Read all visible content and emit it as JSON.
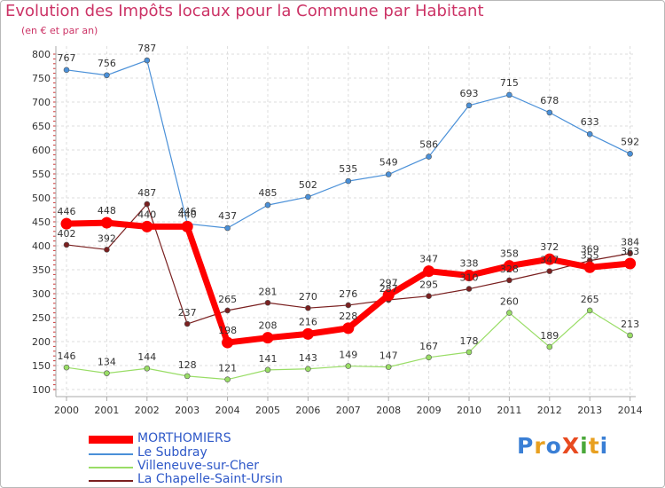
{
  "title": "Evolution des Impôts locaux pour la Commune par Habitant",
  "subtitle": "(en € et par an)",
  "logo": {
    "text": "ProXiti",
    "colors": [
      "#3a7fd5",
      "#e8a020",
      "#3a7fd5",
      "#e84a20",
      "#4aa83a",
      "#e8a020",
      "#3a7fd5"
    ]
  },
  "chart_data": {
    "type": "line",
    "x": [
      "2000",
      "2001",
      "2002",
      "2003",
      "2004",
      "2005",
      "2006",
      "2007",
      "2008",
      "2009",
      "2010",
      "2011",
      "2012",
      "2013",
      "2014"
    ],
    "ylim": [
      100,
      800
    ],
    "yticks": [
      100,
      150,
      200,
      250,
      300,
      350,
      400,
      450,
      500,
      550,
      600,
      650,
      700,
      750,
      800
    ],
    "grid": true,
    "legend_position": "bottom-left",
    "series": [
      {
        "name": "MORTHOMIERS",
        "color": "#ff0000",
        "values": [
          446,
          448,
          440,
          440,
          198,
          208,
          216,
          228,
          297,
          347,
          338,
          358,
          372,
          355,
          363
        ]
      },
      {
        "name": "Le Subdray",
        "color": "#4a90d8",
        "values": [
          767,
          756,
          787,
          446,
          437,
          485,
          502,
          535,
          549,
          586,
          693,
          715,
          678,
          633,
          592
        ]
      },
      {
        "name": "Villeneuve-sur-Cher",
        "color": "#99dd66",
        "values": [
          146,
          134,
          144,
          128,
          121,
          141,
          143,
          149,
          147,
          167,
          178,
          260,
          189,
          265,
          213
        ]
      },
      {
        "name": "La Chapelle-Saint-Ursin",
        "color": "#7a2020",
        "values": [
          402,
          392,
          487,
          237,
          265,
          281,
          270,
          276,
          287,
          295,
          310,
          328,
          347,
          369,
          384
        ]
      }
    ],
    "labels": [
      [
        "446",
        "448",
        "440",
        "440",
        "198",
        "208",
        "216",
        "228",
        "297",
        "347",
        "338",
        "358",
        "372",
        "355",
        "363"
      ],
      [
        "767",
        "756",
        "787",
        "446",
        "437",
        "485",
        "502",
        "535",
        "549",
        "586",
        "693",
        "715",
        "678",
        "633",
        "592"
      ],
      [
        "146",
        "134",
        "144",
        "128",
        "121",
        "141",
        "143",
        "149",
        "147",
        "167",
        "178",
        "260",
        "189",
        "265",
        "213"
      ],
      [
        "402",
        "392",
        "487",
        "237",
        "265",
        "281",
        "270",
        "276",
        "287",
        "295",
        "310",
        "328",
        "347",
        "369",
        "384"
      ]
    ]
  }
}
